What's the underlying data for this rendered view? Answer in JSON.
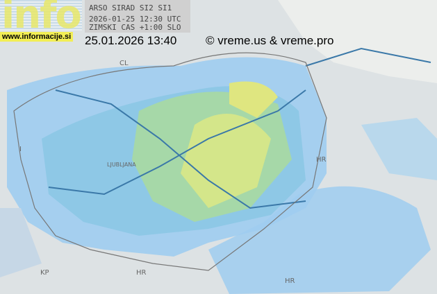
{
  "logo": {
    "text": "info",
    "site": "www.informacije.si"
  },
  "radar": {
    "line1": "ARSO SIRAD SI2 SI1",
    "line2": "2026-01-25 12:30 UTC",
    "line3": "ZIMSKI CAS +1:00 SLO"
  },
  "timestamp": "25.01.2026 13:40",
  "copyright": "© vreme.us & vreme.pro",
  "map_labels": {
    "at": "CL",
    "hr_east": "HR",
    "hr_south": "HR",
    "it": "I",
    "kp": "KP",
    "ljubljana": "LJUBLJANA",
    "hr_ne": "HR"
  },
  "colors": {
    "light_blue": "#a9d4f0",
    "blue": "#6aaee0",
    "cyan": "#74c8d8",
    "green": "#a8dc8c",
    "yellow": "#e8e878"
  }
}
